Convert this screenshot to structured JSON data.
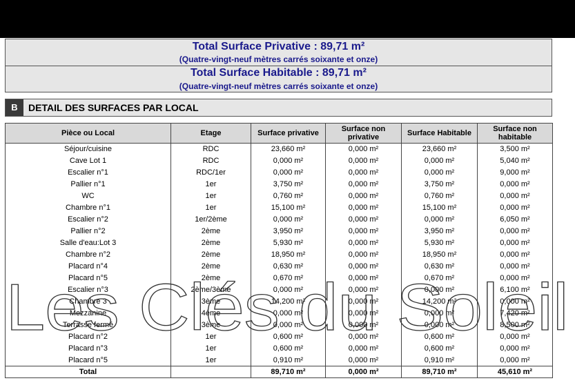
{
  "totals": {
    "privative_title": "Total Surface Privative : 89,71 m²",
    "privative_words": "(Quatre-vingt-neuf mètres carrés soixante et onze)",
    "habitable_title": "Total Surface Habitable : 89,71 m²",
    "habitable_words": "(Quatre-vingt-neuf mètres carrés soixante et onze)"
  },
  "section": {
    "letter": "B",
    "title": "DETAIL DES SURFACES PAR LOCAL"
  },
  "table": {
    "headers": [
      "Pièce ou Local",
      "Etage",
      "Surface privative",
      "Surface non privative",
      "Surface Habitable",
      "Surface non habitable"
    ],
    "rows": [
      [
        "Séjour/cuisine",
        "RDC",
        "23,660 m²",
        "0,000 m²",
        "23,660 m²",
        "3,500 m²"
      ],
      [
        "Cave Lot 1",
        "RDC",
        "0,000 m²",
        "0,000 m²",
        "0,000 m²",
        "5,040 m²"
      ],
      [
        "Escalier n°1",
        "RDC/1er",
        "0,000 m²",
        "0,000 m²",
        "0,000 m²",
        "9,000 m²"
      ],
      [
        "Pallier n°1",
        "1er",
        "3,750 m²",
        "0,000 m²",
        "3,750 m²",
        "0,000 m²"
      ],
      [
        "WC",
        "1er",
        "0,760 m²",
        "0,000 m²",
        "0,760 m²",
        "0,000 m²"
      ],
      [
        "Chambre n°1",
        "1er",
        "15,100 m²",
        "0,000 m²",
        "15,100 m²",
        "0,000 m²"
      ],
      [
        "Escalier n°2",
        "1er/2ème",
        "0,000 m²",
        "0,000 m²",
        "0,000 m²",
        "6,050 m²"
      ],
      [
        "Pallier n°2",
        "2ème",
        "3,950 m²",
        "0,000 m²",
        "3,950 m²",
        "0,000 m²"
      ],
      [
        "Salle d'eau:Lot 3",
        "2ème",
        "5,930 m²",
        "0,000 m²",
        "5,930 m²",
        "0,000 m²"
      ],
      [
        "Chambre n°2",
        "2ème",
        "18,950 m²",
        "0,000 m²",
        "18,950 m²",
        "0,000 m²"
      ],
      [
        "Placard n°4",
        "2ème",
        "0,630 m²",
        "0,000 m²",
        "0,630 m²",
        "0,000 m²"
      ],
      [
        "Placard n°5",
        "2ème",
        "0,670 m²",
        "0,000 m²",
        "0,670 m²",
        "0,000 m²"
      ],
      [
        "Escalier n°3",
        "2ème/3ème",
        "0,000 m²",
        "0,000 m²",
        "0,000 m²",
        "6,100 m²"
      ],
      [
        "Chambre 3",
        "3ème",
        "14,200 m²",
        "0,000 m²",
        "14,200 m²",
        "0,000 m²"
      ],
      [
        "Mezzanine",
        "4ème",
        "0,000 m²",
        "0,000 m²",
        "0,000 m²",
        "7,420 m²"
      ],
      [
        "Terrasse fermé",
        "3ème",
        "0,000 m²",
        "0,000 m²",
        "0,000 m²",
        "8,500 m²"
      ],
      [
        "Placard n°2",
        "1er",
        "0,600 m²",
        "0,000 m²",
        "0,600 m²",
        "0,000 m²"
      ],
      [
        "Placard n°3",
        "1er",
        "0,600 m²",
        "0,000 m²",
        "0,600 m²",
        "0,000 m²"
      ],
      [
        "Placard n°5",
        "1er",
        "0,910 m²",
        "0,000 m²",
        "0,910 m²",
        "0,000 m²"
      ]
    ],
    "total": [
      "Total",
      "",
      "89,710 m²",
      "0,000 m²",
      "89,710 m²",
      "45,610 m²"
    ]
  },
  "watermark": {
    "text": "Les Clés du Soleil"
  }
}
